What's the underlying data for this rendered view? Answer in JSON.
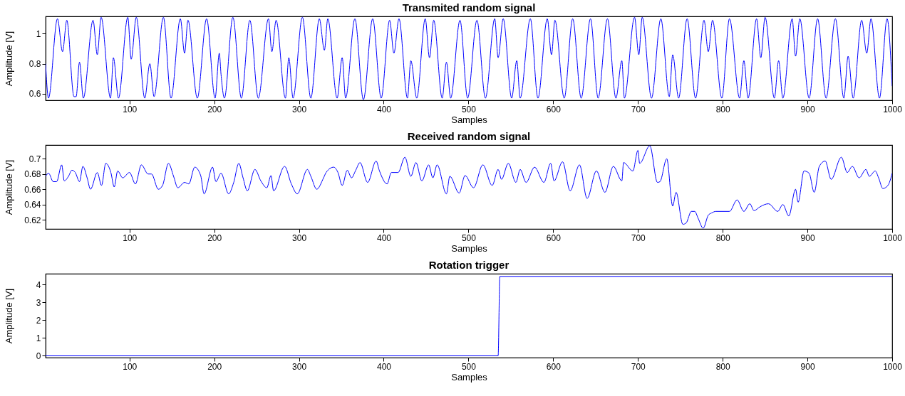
{
  "chart_data": [
    {
      "type": "line",
      "title": "Transmited random signal",
      "xlabel": "Samples",
      "ylabel": "Amplitude [V]",
      "xlim": [
        1,
        1000
      ],
      "xticks": [
        100,
        200,
        300,
        400,
        500,
        600,
        700,
        800,
        900,
        1000
      ],
      "ylim": [
        0.556,
        1.116
      ],
      "yticks": [
        0.6,
        0.8,
        1
      ],
      "grid": false,
      "x": [
        1,
        4.4,
        15,
        21,
        26,
        34.5,
        37,
        41,
        45.5,
        57,
        62,
        66.5,
        77.6,
        81,
        87,
        98,
        102,
        108,
        118,
        124,
        129,
        140,
        149,
        160,
        165,
        169,
        180,
        191,
        201,
        206,
        208,
        212,
        222,
        232,
        242,
        252,
        264,
        268,
        273,
        284,
        288,
        293,
        304,
        314,
        324,
        330,
        334,
        345,
        351,
        355,
        366,
        376,
        387,
        397,
        407,
        412,
        418,
        428,
        432,
        439,
        449,
        454,
        459,
        469,
        474,
        479,
        490,
        499,
        510,
        520,
        531,
        535,
        541,
        551,
        557,
        561,
        573,
        582,
        593,
        598,
        602,
        613,
        623,
        633,
        644,
        653,
        664,
        674,
        681,
        684,
        696,
        701,
        705,
        716,
        727,
        737,
        741,
        748,
        758,
        768,
        778,
        783,
        788,
        799,
        808,
        820,
        825,
        830,
        840,
        845,
        850,
        861,
        866,
        871,
        882,
        886,
        891,
        902,
        912,
        922,
        933,
        943,
        948,
        954,
        964,
        970,
        975,
        985,
        994,
        1000
      ],
      "series": [
        {
          "color": "#0000ff",
          "values": [
            0.8,
            0.57,
            1.1,
            0.88,
            1.09,
            0.58,
            0.58,
            0.81,
            0.57,
            1.09,
            0.86,
            1.11,
            0.57,
            0.84,
            0.57,
            1.11,
            0.83,
            1.11,
            0.57,
            0.8,
            0.58,
            1.11,
            0.57,
            1.1,
            0.87,
            1.09,
            0.57,
            1.1,
            0.57,
            0.87,
            0.73,
            0.57,
            1.11,
            0.57,
            1.09,
            0.57,
            1.1,
            0.88,
            1.09,
            0.57,
            0.84,
            0.57,
            1.11,
            0.57,
            1.1,
            0.89,
            1.1,
            0.57,
            0.84,
            0.57,
            1.1,
            0.56,
            1.1,
            0.57,
            1.09,
            0.87,
            1.1,
            0.57,
            0.82,
            0.57,
            1.1,
            0.84,
            1.09,
            0.57,
            0.81,
            0.57,
            1.09,
            0.57,
            1.09,
            0.57,
            1.1,
            0.84,
            1.1,
            0.57,
            0.82,
            0.57,
            1.1,
            0.57,
            1.1,
            0.86,
            1.09,
            0.57,
            1.1,
            0.57,
            1.1,
            0.57,
            1.1,
            0.57,
            0.82,
            0.57,
            1.11,
            0.86,
            1.11,
            0.57,
            1.1,
            0.58,
            0.86,
            0.57,
            1.1,
            0.57,
            1.09,
            0.88,
            1.09,
            0.57,
            1.1,
            0.57,
            0.82,
            0.57,
            1.1,
            0.84,
            1.11,
            0.57,
            0.82,
            0.57,
            1.1,
            0.85,
            1.1,
            0.57,
            1.1,
            0.57,
            1.1,
            0.57,
            0.85,
            0.57,
            1.09,
            0.87,
            1.1,
            0.57,
            1.1,
            0.65
          ]
        }
      ]
    },
    {
      "type": "line",
      "title": "Received random signal",
      "xlabel": "Samples",
      "ylabel": "Amplitude [V]",
      "xlim": [
        1,
        1000
      ],
      "xticks": [
        100,
        200,
        300,
        400,
        500,
        600,
        700,
        800,
        900,
        1000
      ],
      "ylim": [
        0.608,
        0.718
      ],
      "yticks": [
        0.62,
        0.64,
        0.66,
        0.68,
        0.7
      ],
      "grid": false,
      "x": [
        1,
        4.5,
        10,
        14,
        20,
        23,
        28,
        32,
        36,
        41,
        45,
        50,
        54,
        62,
        67,
        72,
        78,
        82,
        86,
        92,
        100,
        107,
        114,
        122,
        126,
        134,
        139,
        146,
        152,
        157,
        165,
        170,
        177,
        184,
        188,
        198,
        202,
        208,
        217,
        223,
        229,
        234,
        239,
        248,
        255,
        262,
        267,
        270,
        283,
        291,
        298,
        310,
        314,
        321,
        329,
        332,
        341,
        346,
        351,
        357,
        362,
        367,
        372,
        381,
        391,
        395,
        404,
        409,
        417,
        425,
        432,
        438,
        445,
        453,
        458,
        463,
        474,
        478,
        489,
        496,
        506,
        517,
        528,
        535,
        539,
        547,
        556,
        561,
        568,
        578,
        589,
        597,
        601,
        611,
        620,
        631,
        640,
        651,
        661,
        671,
        681,
        683,
        694,
        700,
        702,
        714,
        723,
        726,
        734,
        741,
        745,
        753,
        757,
        763,
        767,
        771,
        777,
        783,
        787,
        792,
        808,
        817,
        825,
        832,
        837,
        844,
        854,
        865,
        871,
        878,
        886,
        889,
        896,
        902,
        908,
        914,
        921,
        928,
        940,
        947,
        953,
        961,
        969,
        973,
        980,
        984,
        989,
        995,
        1000
      ],
      "series": [
        {
          "color": "#0000ff",
          "values": [
            0.677,
            0.681,
            0.67,
            0.67,
            0.692,
            0.671,
            0.677,
            0.685,
            0.682,
            0.67,
            0.69,
            0.675,
            0.66,
            0.682,
            0.665,
            0.694,
            0.682,
            0.663,
            0.684,
            0.675,
            0.682,
            0.667,
            0.692,
            0.68,
            0.68,
            0.66,
            0.665,
            0.694,
            0.677,
            0.662,
            0.669,
            0.667,
            0.689,
            0.678,
            0.654,
            0.689,
            0.67,
            0.681,
            0.654,
            0.669,
            0.694,
            0.675,
            0.658,
            0.686,
            0.671,
            0.662,
            0.678,
            0.658,
            0.69,
            0.667,
            0.654,
            0.686,
            0.677,
            0.66,
            0.675,
            0.682,
            0.689,
            0.682,
            0.665,
            0.685,
            0.675,
            0.685,
            0.695,
            0.669,
            0.697,
            0.684,
            0.667,
            0.682,
            0.682,
            0.702,
            0.677,
            0.695,
            0.671,
            0.692,
            0.675,
            0.692,
            0.654,
            0.677,
            0.655,
            0.678,
            0.662,
            0.692,
            0.665,
            0.686,
            0.673,
            0.694,
            0.669,
            0.686,
            0.669,
            0.689,
            0.669,
            0.694,
            0.671,
            0.696,
            0.658,
            0.692,
            0.648,
            0.684,
            0.656,
            0.69,
            0.671,
            0.695,
            0.684,
            0.711,
            0.694,
            0.717,
            0.669,
            0.67,
            0.7,
            0.638,
            0.656,
            0.614,
            0.616,
            0.631,
            0.631,
            0.622,
            0.609,
            0.626,
            0.629,
            0.631,
            0.631,
            0.646,
            0.631,
            0.641,
            0.632,
            0.637,
            0.641,
            0.631,
            0.64,
            0.625,
            0.66,
            0.643,
            0.684,
            0.681,
            0.656,
            0.69,
            0.697,
            0.673,
            0.702,
            0.682,
            0.69,
            0.675,
            0.686,
            0.677,
            0.684,
            0.675,
            0.661,
            0.665,
            0.681
          ]
        }
      ]
    },
    {
      "type": "line",
      "title": "Rotation trigger",
      "xlabel": "Samples",
      "ylabel": "Amplitude [V]",
      "xlim": [
        1,
        1000
      ],
      "xticks": [
        100,
        200,
        300,
        400,
        500,
        600,
        700,
        800,
        900,
        1000
      ],
      "ylim": [
        -0.1,
        4.6
      ],
      "yticks": [
        0,
        1,
        2,
        3,
        4
      ],
      "grid": false,
      "x": [
        1,
        535,
        537,
        1000
      ],
      "series": [
        {
          "color": "#0000ff",
          "values": [
            0,
            0,
            4.45,
            4.45
          ]
        }
      ]
    }
  ]
}
